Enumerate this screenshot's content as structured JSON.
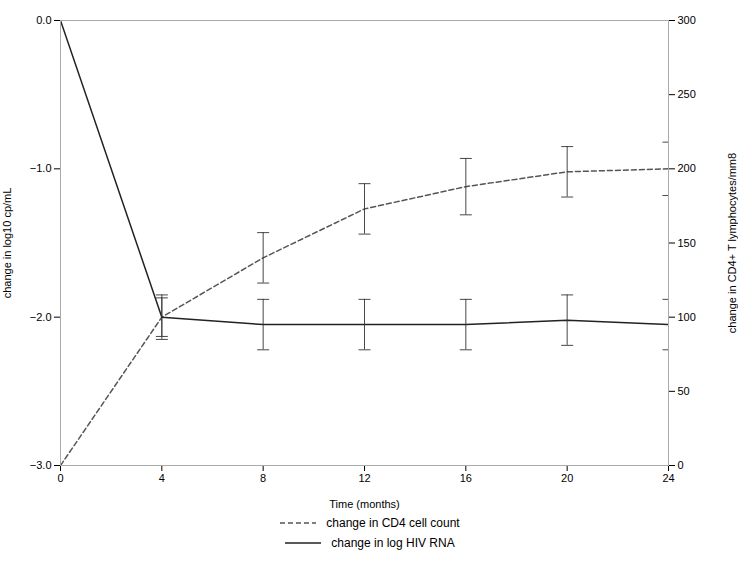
{
  "chart_data": {
    "type": "line",
    "xlabel": "Time (months)",
    "ylabel": "change in log10 cp/mL",
    "y2label": "change in CD4+ T lymphocytes/mm8",
    "x": [
      0,
      4,
      8,
      12,
      16,
      20,
      24
    ],
    "xlim": [
      0,
      24
    ],
    "xticks": [
      0,
      4,
      8,
      12,
      16,
      20,
      24
    ],
    "ylim": [
      -3,
      0
    ],
    "yticks": [
      -3,
      -2,
      -1,
      0
    ],
    "y2lim": [
      0,
      300
    ],
    "y2ticks": [
      0,
      50,
      100,
      150,
      200,
      250,
      300
    ],
    "grid": false,
    "legend": "bottom",
    "series": [
      {
        "name": "change in CD4 cell count",
        "color": "#555555",
        "line_style": "dashed",
        "values": [
          -3.0,
          -2.0,
          -1.6,
          -1.27,
          -1.12,
          -1.02,
          -1.0
        ],
        "ci_upper": [
          null,
          -1.87,
          -1.43,
          -1.1,
          -0.93,
          -0.85,
          -0.82
        ],
        "ci_lower": [
          null,
          -2.13,
          -1.77,
          -1.44,
          -1.31,
          -1.19,
          -1.18
        ]
      },
      {
        "name": "change in log HIV RNA",
        "color": "#222222",
        "line_style": "solid",
        "values": [
          0.0,
          -2.0,
          -2.05,
          -2.05,
          -2.05,
          -2.02,
          -2.05
        ],
        "ci_upper": [
          null,
          -1.85,
          -1.88,
          -1.88,
          -1.88,
          -1.85,
          -1.88
        ],
        "ci_lower": [
          null,
          -2.15,
          -2.22,
          -2.22,
          -2.22,
          -2.19,
          -2.22
        ]
      }
    ]
  }
}
